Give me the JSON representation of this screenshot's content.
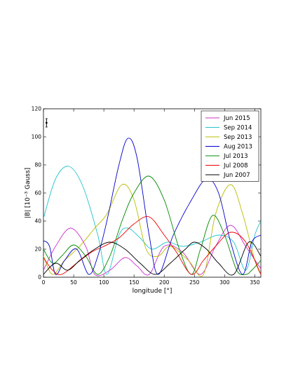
{
  "chart_data": {
    "type": "line",
    "xlabel": "longitude [°]",
    "ylabel": "|B| [10⁻³ Gauss]",
    "xlim": [
      0,
      360
    ],
    "ylim": [
      0,
      120
    ],
    "xticks": [
      "0",
      "50",
      "100",
      "150",
      "200",
      "250",
      "300",
      "350"
    ],
    "yticks": [
      "0",
      "20",
      "40",
      "60",
      "80",
      "100",
      "120"
    ],
    "grid": false,
    "legend_position": "top-right",
    "error_bar": {
      "x": 5,
      "y": 110,
      "err": 3
    },
    "series": [
      {
        "name": "Jun 2015",
        "color": "#cc33cc",
        "x": [
          0,
          20,
          45,
          70,
          85,
          110,
          135,
          155,
          175,
          200,
          230,
          260,
          285,
          310,
          335,
          360
        ],
        "y": [
          5,
          22,
          35,
          22,
          2,
          5,
          14,
          8,
          2,
          22,
          18,
          2,
          22,
          37,
          22,
          6
        ]
      },
      {
        "name": "Sep 2014",
        "color": "#22c4cc",
        "x": [
          0,
          20,
          42,
          65,
          90,
          105,
          125,
          140,
          160,
          180,
          205,
          230,
          260,
          290,
          315,
          335,
          350,
          360
        ],
        "y": [
          42,
          70,
          79,
          65,
          30,
          2,
          30,
          35,
          28,
          20,
          25,
          22,
          25,
          30,
          25,
          5,
          30,
          40
        ]
      },
      {
        "name": "Sep 2013",
        "color": "#bbbb00",
        "x": [
          0,
          15,
          35,
          60,
          85,
          105,
          130,
          150,
          170,
          190,
          210,
          240,
          265,
          285,
          310,
          330,
          350,
          360
        ],
        "y": [
          15,
          2,
          12,
          22,
          35,
          45,
          66,
          55,
          20,
          15,
          22,
          12,
          2,
          45,
          66,
          45,
          12,
          2
        ]
      },
      {
        "name": "Aug 2013",
        "color": "#0000cc",
        "x": [
          0,
          10,
          20,
          35,
          55,
          75,
          90,
          105,
          125,
          140,
          155,
          175,
          190,
          215,
          245,
          270,
          290,
          310,
          330,
          345,
          360
        ],
        "y": [
          26,
          22,
          2,
          12,
          20,
          2,
          15,
          40,
          80,
          99,
          85,
          30,
          2,
          30,
          55,
          70,
          60,
          25,
          2,
          25,
          30
        ]
      },
      {
        "name": "Jul 2013",
        "color": "#008800",
        "x": [
          0,
          15,
          30,
          50,
          70,
          90,
          110,
          130,
          150,
          175,
          200,
          225,
          245,
          260,
          280,
          300,
          320,
          335,
          345,
          360
        ],
        "y": [
          20,
          10,
          15,
          23,
          15,
          2,
          15,
          40,
          60,
          72,
          55,
          20,
          2,
          20,
          44,
          30,
          5,
          2,
          5,
          12
        ]
      },
      {
        "name": "Jul 2008",
        "color": "#ee0000",
        "x": [
          0,
          15,
          30,
          55,
          80,
          100,
          125,
          150,
          175,
          200,
          220,
          245,
          265,
          285,
          310,
          335,
          360
        ],
        "y": [
          14,
          5,
          2,
          10,
          18,
          22,
          28,
          38,
          43,
          30,
          18,
          2,
          12,
          22,
          32,
          25,
          2
        ]
      },
      {
        "name": "Jun 2007",
        "color": "#000000",
        "x": [
          0,
          20,
          40,
          60,
          85,
          110,
          135,
          160,
          185,
          210,
          235,
          250,
          270,
          290,
          315,
          340,
          360
        ],
        "y": [
          2,
          10,
          5,
          12,
          20,
          25,
          20,
          10,
          2,
          10,
          20,
          25,
          20,
          10,
          2,
          25,
          15
        ]
      }
    ]
  }
}
